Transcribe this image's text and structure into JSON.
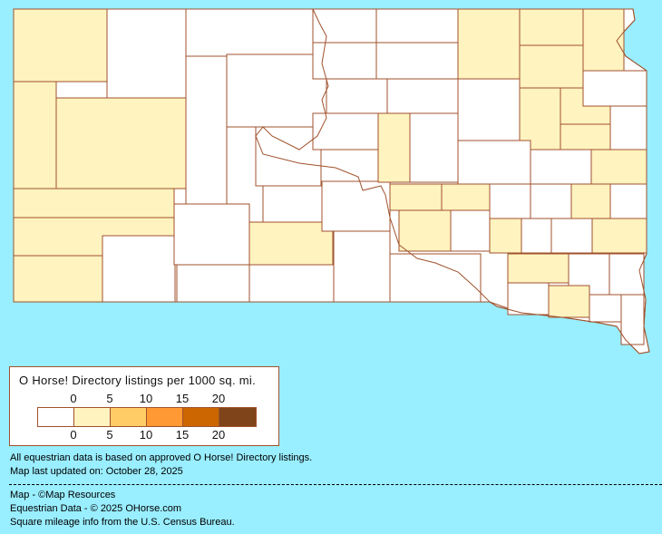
{
  "map": {
    "colors": {
      "background": "#99EEFF",
      "border": "#A0522D",
      "level0": "#FFFFFF",
      "level1": "#FFF3BF",
      "level2": "#FFCC66",
      "level3": "#FF9933",
      "level4": "#CC6600",
      "level5": "#7F4419"
    }
  },
  "legend": {
    "title": "O Horse! Directory listings per 1000 sq. mi.",
    "top_ticks": [
      "0",
      "5",
      "10",
      "15",
      "20"
    ],
    "bottom_ticks": [
      "0",
      "5",
      "10",
      "15",
      "20"
    ],
    "swatch_colors": [
      "#FFFFFF",
      "#FFF3BF",
      "#FFCC66",
      "#FF9933",
      "#CC6600",
      "#7F4419"
    ]
  },
  "notes": {
    "data_basis": "All equestrian data is based on approved O Horse! Directory listings.",
    "updated": "Map last updated on: October 28, 2025"
  },
  "credits": {
    "map": "Map - ©Map Resources",
    "equestrian": "Equestrian Data - © 2025 OHorse.com",
    "mileage": "Square mileage info from the U.S. Census Bureau."
  }
}
